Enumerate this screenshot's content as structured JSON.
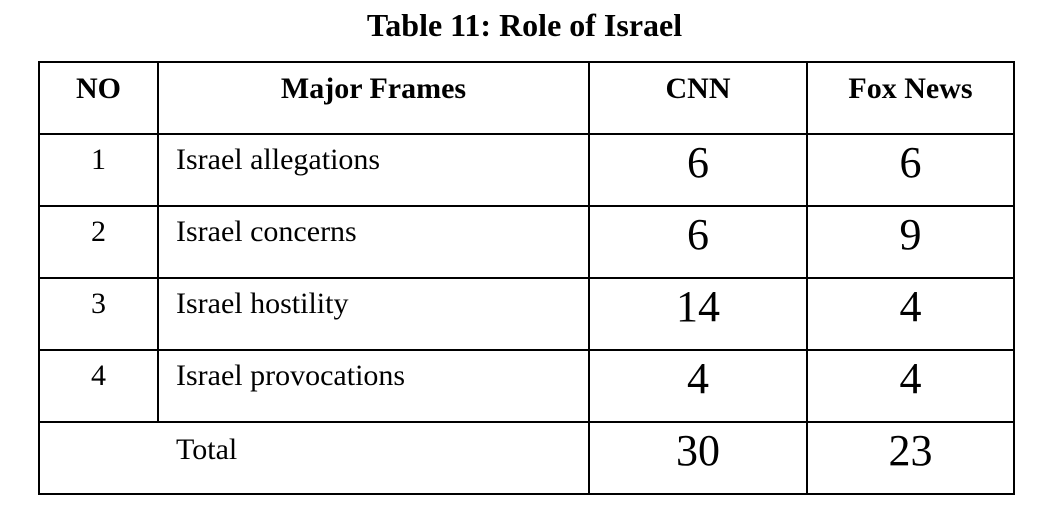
{
  "title": "Table 11: Role of Israel",
  "table": {
    "headers": [
      "NO",
      "Major Frames",
      "CNN",
      "Fox News"
    ],
    "rows": [
      {
        "no": "1",
        "frame": "Israel allegations",
        "cnn": "6",
        "fox": "6"
      },
      {
        "no": "2",
        "frame": "Israel concerns",
        "cnn": "6",
        "fox": "9"
      },
      {
        "no": "3",
        "frame": "Israel hostility",
        "cnn": "14",
        "fox": "4"
      },
      {
        "no": "4",
        "frame": "Israel provocations",
        "cnn": "4",
        "fox": "4"
      }
    ],
    "total": {
      "label": "Total",
      "cnn": "30",
      "fox": "23"
    }
  },
  "colors": {
    "text": "#000000",
    "border": "#000000",
    "background": "#ffffff"
  },
  "chart_data": {
    "type": "table",
    "title": "Table 11: Role of Israel",
    "columns": [
      "NO",
      "Major Frames",
      "CNN",
      "Fox News"
    ],
    "rows": [
      [
        "1",
        "Israel allegations",
        6,
        6
      ],
      [
        "2",
        "Israel concerns",
        6,
        9
      ],
      [
        "3",
        "Israel hostility",
        14,
        4
      ],
      [
        "4",
        "Israel provocations",
        4,
        4
      ],
      [
        "",
        "Total",
        30,
        23
      ]
    ],
    "series": [
      {
        "name": "CNN",
        "values": [
          6,
          6,
          14,
          4
        ],
        "total": 30
      },
      {
        "name": "Fox News",
        "values": [
          6,
          9,
          4,
          4
        ],
        "total": 23
      }
    ],
    "categories": [
      "Israel allegations",
      "Israel concerns",
      "Israel hostility",
      "Israel provocations"
    ]
  }
}
